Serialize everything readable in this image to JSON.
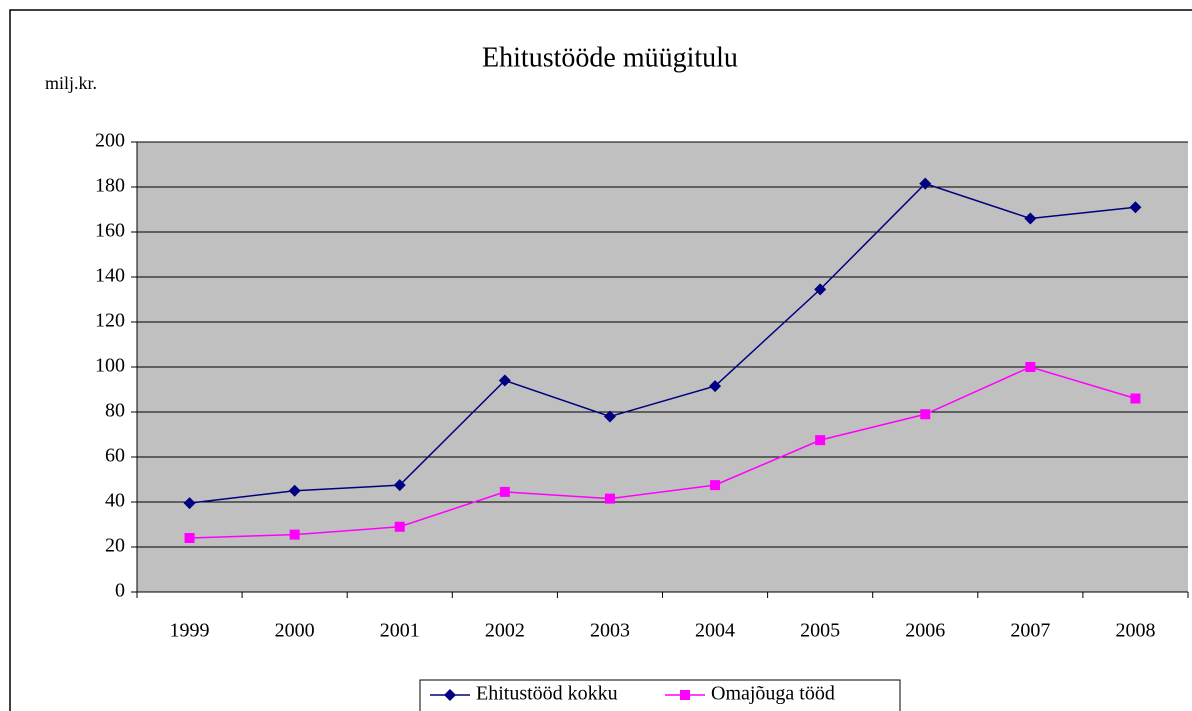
{
  "chart_data": {
    "type": "line",
    "title": "Ehitustööde müügitulu",
    "ylabel": "milj.kr.",
    "categories": [
      "1999",
      "2000",
      "2001",
      "2002",
      "2003",
      "2004",
      "2005",
      "2006",
      "2007",
      "2008"
    ],
    "series": [
      {
        "name": "Ehitustööd kokku",
        "color": "#000080",
        "marker": "diamond",
        "values": [
          39.5,
          45,
          47.5,
          94,
          78,
          91.5,
          134.5,
          181.5,
          166,
          171
        ]
      },
      {
        "name": "Omajõuga tööd",
        "color": "#ff00ff",
        "marker": "square",
        "values": [
          24,
          25.5,
          29,
          44.5,
          41.5,
          47.5,
          67.5,
          79,
          100,
          86
        ]
      }
    ],
    "ylim": [
      0,
      200
    ],
    "yticks": [
      0,
      20,
      40,
      60,
      80,
      100,
      120,
      140,
      160,
      180,
      200
    ],
    "grid": true,
    "plot_background": "#c0c0c0",
    "legend": "bottom"
  }
}
